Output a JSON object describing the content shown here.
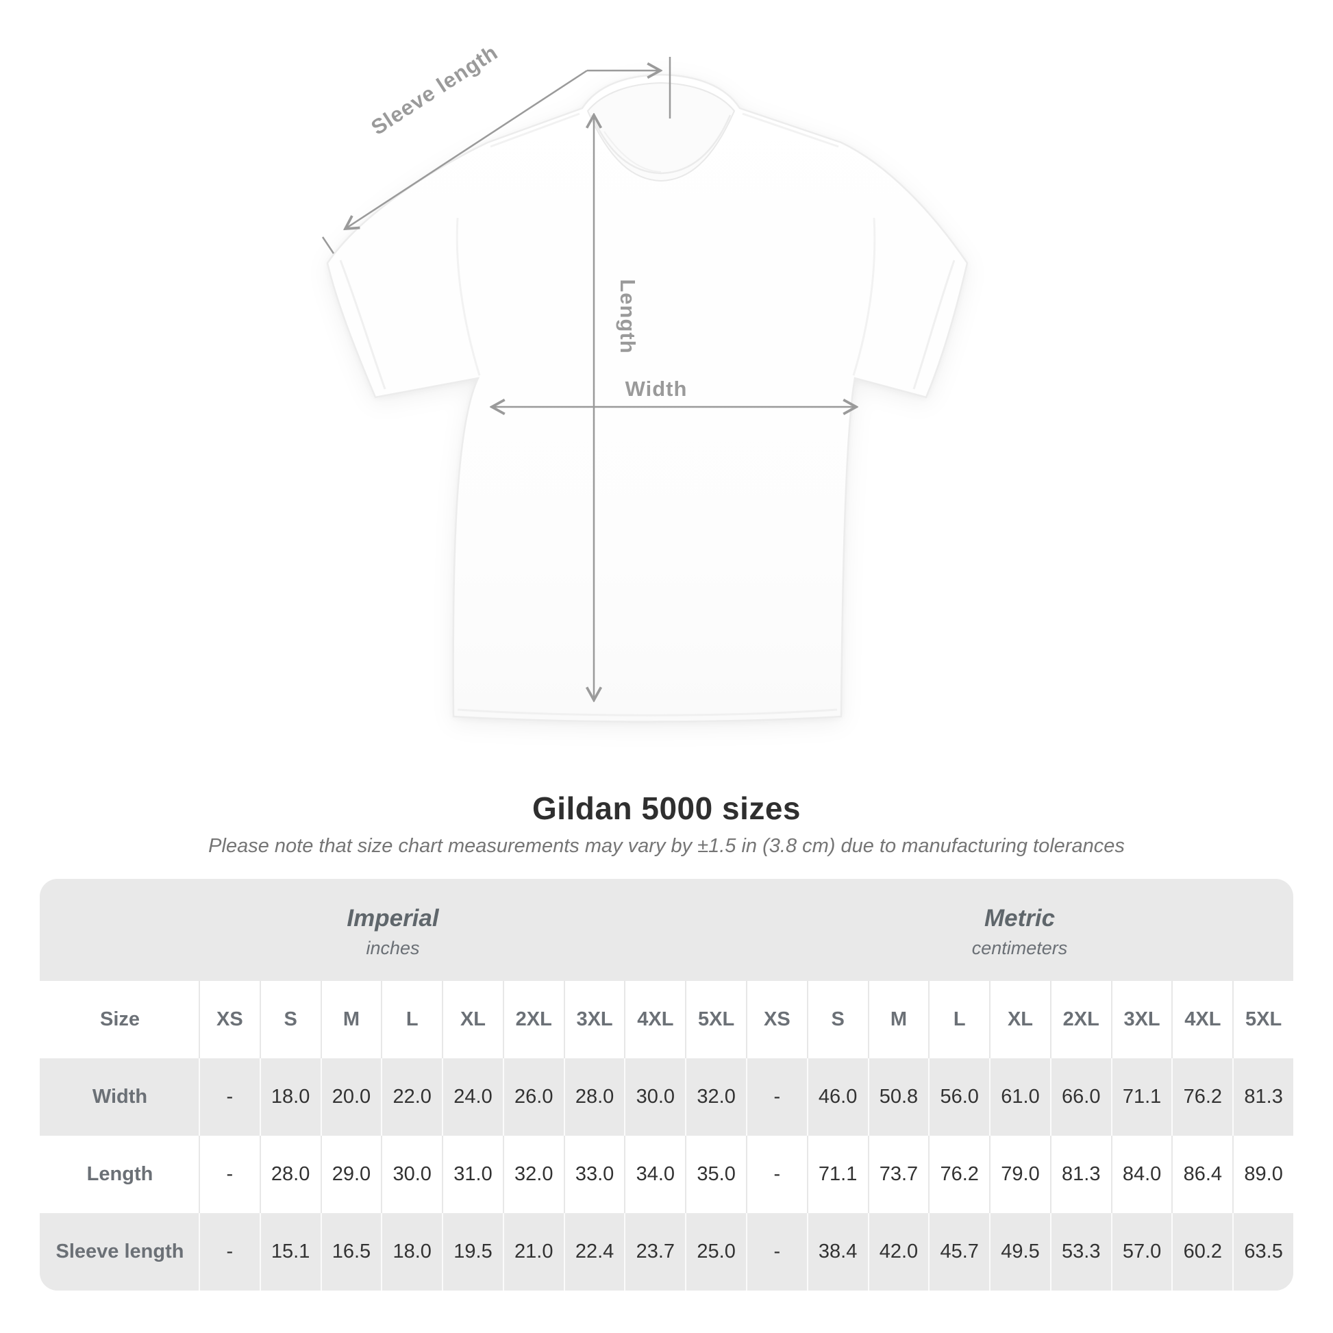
{
  "diagram": {
    "labels": {
      "sleeve_length": "Sleeve length",
      "length": "Length",
      "width": "Width"
    }
  },
  "header": {
    "title": "Gildan 5000 sizes",
    "note": "Please note that size chart measurements may vary by ±1.5 in (3.8 cm) due to manufacturing tolerances"
  },
  "table": {
    "size_header": "Size",
    "unit_groups": [
      {
        "name": "Imperial",
        "unit": "inches"
      },
      {
        "name": "Metric",
        "unit": "centimeters"
      }
    ],
    "sizes": [
      "XS",
      "S",
      "M",
      "L",
      "XL",
      "2XL",
      "3XL",
      "4XL",
      "5XL"
    ],
    "rows": [
      {
        "label": "Width",
        "imperial": [
          "-",
          "18.0",
          "20.0",
          "22.0",
          "24.0",
          "26.0",
          "28.0",
          "30.0",
          "32.0"
        ],
        "metric": [
          "-",
          "46.0",
          "50.8",
          "56.0",
          "61.0",
          "66.0",
          "71.1",
          "76.2",
          "81.3"
        ]
      },
      {
        "label": "Length",
        "imperial": [
          "-",
          "28.0",
          "29.0",
          "30.0",
          "31.0",
          "32.0",
          "33.0",
          "34.0",
          "35.0"
        ],
        "metric": [
          "-",
          "71.1",
          "73.7",
          "76.2",
          "79.0",
          "81.3",
          "84.0",
          "86.4",
          "89.0"
        ]
      },
      {
        "label": "Sleeve length",
        "imperial": [
          "-",
          "15.1",
          "16.5",
          "18.0",
          "19.5",
          "21.0",
          "22.4",
          "23.7",
          "25.0"
        ],
        "metric": [
          "-",
          "38.4",
          "42.0",
          "45.7",
          "49.5",
          "53.3",
          "57.0",
          "60.2",
          "63.5"
        ]
      }
    ]
  },
  "colors": {
    "annotation": "#9a9a9a",
    "panel_gray": "#e9e9e9",
    "header_text": "#6b7076",
    "value_text": "#323232",
    "title_text": "#2f2f2f",
    "note_text": "#757575"
  }
}
